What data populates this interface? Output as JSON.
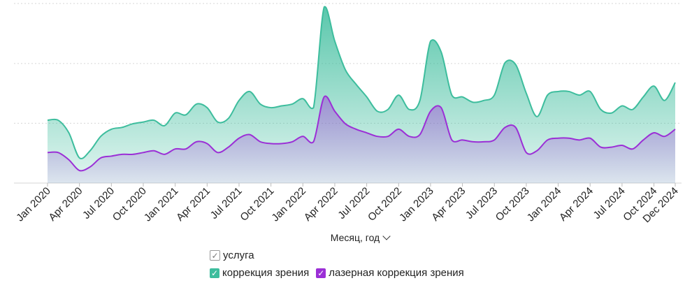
{
  "chart_data": {
    "type": "area",
    "xlabel": "Месяц, год",
    "x_tick_labels": [
      "Jan 2020",
      "Apr 2020",
      "Jul 2020",
      "Oct 2020",
      "Jan 2021",
      "Apr 2021",
      "Jul 2021",
      "Oct 2021",
      "Jan 2022",
      "Apr 2022",
      "Jul 2022",
      "Oct 2022",
      "Jan 2023",
      "Apr 2023",
      "Jul 2023",
      "Oct 2023",
      "Jan 2024",
      "Apr 2024",
      "Jul 2024",
      "Oct 2024",
      "Dec 2024"
    ],
    "x_tick_months": [
      0,
      3,
      6,
      9,
      12,
      15,
      18,
      21,
      24,
      27,
      30,
      33,
      36,
      39,
      42,
      45,
      48,
      51,
      54,
      57,
      59
    ],
    "ylim": [
      0,
      100
    ],
    "grid": true,
    "stacked": false,
    "series": [
      {
        "name": "коррекция зрения",
        "color": "#3dbd9d",
        "values": [
          35,
          35,
          28,
          14,
          18,
          26,
          30,
          31,
          33,
          34,
          35,
          32,
          39,
          38,
          44,
          42,
          34,
          36,
          46,
          51,
          44,
          42,
          43,
          44,
          47,
          42,
          98,
          79,
          63,
          55,
          48,
          40,
          41,
          49,
          41,
          46,
          79,
          73,
          49,
          48,
          45,
          46,
          49,
          67,
          66,
          50,
          37,
          49,
          51,
          51,
          49,
          51,
          41,
          39,
          43,
          41,
          48,
          54,
          46,
          56
        ],
        "label_fill_visible": true
      },
      {
        "name": "лазерная коррекция зрения",
        "color": "#9b2fd6",
        "values": [
          17,
          17,
          13,
          7,
          9,
          14,
          15,
          16,
          16,
          17,
          18,
          16,
          19,
          19,
          23,
          22,
          17,
          20,
          25,
          27,
          23,
          22,
          22,
          23,
          26,
          23,
          48,
          40,
          33,
          30,
          28,
          26,
          26,
          30,
          26,
          27,
          40,
          42,
          24,
          24,
          23,
          23,
          24,
          31,
          31,
          17,
          18,
          24,
          25,
          25,
          24,
          25,
          20,
          20,
          21,
          19,
          24,
          28,
          26,
          30
        ],
        "label_fill_visible": true
      }
    ]
  },
  "legend": {
    "group_label": "услуга",
    "items": [
      {
        "label": "коррекция зрения",
        "color": "#3dbd9d"
      },
      {
        "label": "лазерная коррекция зрения",
        "color": "#9b2fd6"
      }
    ]
  }
}
